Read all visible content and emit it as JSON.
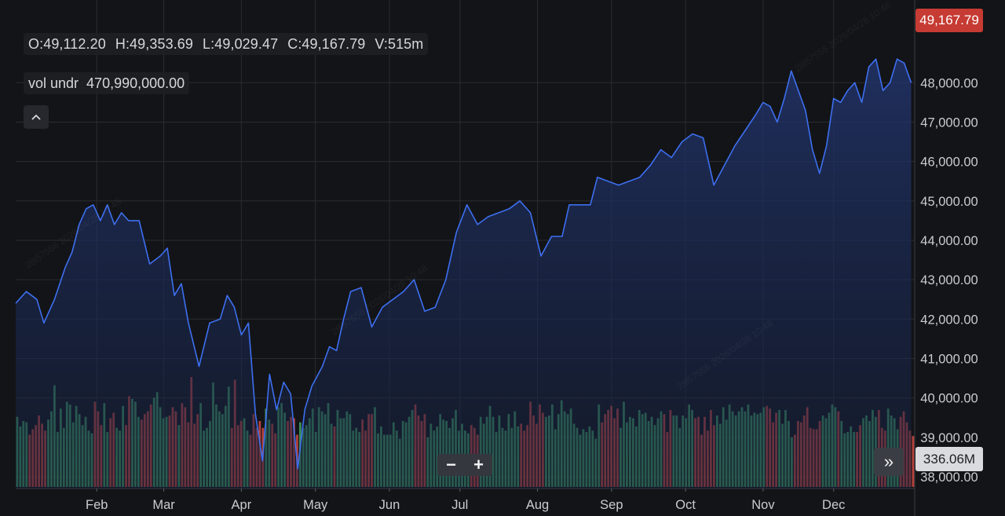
{
  "ohlc": {
    "open": "O:49,112.20",
    "high": "H:49,353.69",
    "low": "L:49,029.47",
    "close": "C:49,167.79",
    "volume": "V:515m"
  },
  "volume_indicator": {
    "label": "vol undr",
    "value": "470,990,000.00"
  },
  "collapse_icon": "chevron-up-icon",
  "badges": {
    "last_price": "49,167.79",
    "last_volume": "336.06M"
  },
  "controls": {
    "zoom_out": "−",
    "zoom_in": "+",
    "scroll_to_end": "»"
  },
  "colors": {
    "background": "#131417",
    "line": "#3d6ff0",
    "area_top": "#22356e",
    "up_volume": "#3f9a5f",
    "down_volume": "#c4463f",
    "price_badge": "#c63b33",
    "grid": "#2a2c31"
  },
  "chart_data": {
    "type": "area",
    "title": "",
    "xlabel": "",
    "ylabel": "",
    "y_axis_position": "right",
    "ylim": [
      37700,
      49900
    ],
    "y_ticks": [
      "38,000.00",
      "39,000.00",
      "40,000.00",
      "41,000.00",
      "42,000.00",
      "43,000.00",
      "44,000.00",
      "45,000.00",
      "46,000.00",
      "47,000.00",
      "48,000.00"
    ],
    "y_tick_values": [
      38000,
      39000,
      40000,
      41000,
      42000,
      43000,
      44000,
      45000,
      46000,
      47000,
      48000
    ],
    "x_tick_labels": [
      "Feb",
      "Mar",
      "Apr",
      "May",
      "Jun",
      "Jul",
      "Aug",
      "Sep",
      "Oct",
      "Nov",
      "Dec"
    ],
    "x_tick_positions": [
      23,
      42,
      64,
      85,
      106,
      126,
      148,
      169,
      190,
      212,
      232
    ],
    "x_range": [
      0,
      255
    ],
    "grid": true,
    "series": [
      {
        "type": "area",
        "points": [
          [
            0,
            42400
          ],
          [
            3,
            42700
          ],
          [
            6,
            42500
          ],
          [
            8,
            41900
          ],
          [
            11,
            42500
          ],
          [
            14,
            43300
          ],
          [
            16,
            43700
          ],
          [
            18,
            44400
          ],
          [
            20,
            44800
          ],
          [
            22,
            44900
          ],
          [
            24,
            44500
          ],
          [
            26,
            44900
          ],
          [
            28,
            44400
          ],
          [
            30,
            44700
          ],
          [
            32,
            44500
          ],
          [
            35,
            44500
          ],
          [
            38,
            43400
          ],
          [
            41,
            43600
          ],
          [
            43,
            43800
          ],
          [
            45,
            42600
          ],
          [
            47,
            42900
          ],
          [
            49,
            41900
          ],
          [
            52,
            40800
          ],
          [
            55,
            41900
          ],
          [
            58,
            42000
          ],
          [
            60,
            42600
          ],
          [
            62,
            42300
          ],
          [
            64,
            41600
          ],
          [
            66,
            41900
          ],
          [
            68,
            39600
          ],
          [
            70,
            38400
          ],
          [
            72,
            40600
          ],
          [
            74,
            39700
          ],
          [
            76,
            40400
          ],
          [
            78,
            40100
          ],
          [
            80,
            38200
          ],
          [
            82,
            39700
          ],
          [
            84,
            40300
          ],
          [
            87,
            40800
          ],
          [
            89,
            41300
          ],
          [
            91,
            41200
          ],
          [
            93,
            42000
          ],
          [
            95,
            42700
          ],
          [
            98,
            42800
          ],
          [
            101,
            41800
          ],
          [
            104,
            42300
          ],
          [
            107,
            42500
          ],
          [
            110,
            42700
          ],
          [
            113,
            43000
          ],
          [
            116,
            42200
          ],
          [
            119,
            42300
          ],
          [
            122,
            43000
          ],
          [
            125,
            44200
          ],
          [
            128,
            44900
          ],
          [
            131,
            44400
          ],
          [
            134,
            44600
          ],
          [
            137,
            44700
          ],
          [
            140,
            44800
          ],
          [
            143,
            45000
          ],
          [
            146,
            44700
          ],
          [
            149,
            43600
          ],
          [
            152,
            44100
          ],
          [
            155,
            44100
          ],
          [
            157,
            44900
          ],
          [
            160,
            44900
          ],
          [
            163,
            44900
          ],
          [
            165,
            45600
          ],
          [
            168,
            45500
          ],
          [
            171,
            45400
          ],
          [
            174,
            45500
          ],
          [
            177,
            45600
          ],
          [
            180,
            45900
          ],
          [
            183,
            46300
          ],
          [
            186,
            46100
          ],
          [
            189,
            46500
          ],
          [
            192,
            46700
          ],
          [
            195,
            46600
          ],
          [
            198,
            45400
          ],
          [
            201,
            45900
          ],
          [
            204,
            46400
          ],
          [
            207,
            46800
          ],
          [
            210,
            47200
          ],
          [
            212,
            47500
          ],
          [
            214,
            47400
          ],
          [
            216,
            47000
          ],
          [
            218,
            47600
          ],
          [
            220,
            48300
          ],
          [
            222,
            47800
          ],
          [
            224,
            47300
          ],
          [
            226,
            46300
          ],
          [
            228,
            45700
          ],
          [
            230,
            46400
          ],
          [
            232,
            47600
          ],
          [
            234,
            47500
          ],
          [
            236,
            47800
          ],
          [
            238,
            48000
          ],
          [
            240,
            47500
          ],
          [
            242,
            48400
          ],
          [
            244,
            48600
          ],
          [
            246,
            47800
          ],
          [
            248,
            48000
          ],
          [
            250,
            48600
          ],
          [
            252,
            48500
          ],
          [
            254,
            48000
          ]
        ]
      },
      {
        "type": "volume",
        "values": [
          51,
          44,
          48,
          47,
          38,
          42,
          45,
          52,
          46,
          41,
          49,
          55,
          74,
          40,
          57,
          43,
          62,
          60,
          47,
          59,
          53,
          45,
          51,
          41,
          39,
          62,
          55,
          45,
          61,
          40,
          50,
          54,
          43,
          41,
          59,
          45,
          66,
          64,
          62,
          51,
          49,
          53,
          55,
          60,
          65,
          69,
          58,
          50,
          51,
          52,
          58,
          55,
          45,
          61,
          58,
          47,
          80,
          46,
          53,
          61,
          41,
          43,
          48,
          76,
          60,
          55,
          53,
          59,
          73,
          43,
          78,
          45,
          48,
          50,
          41,
          38,
          53,
          43,
          48,
          43,
          57,
          49,
          46,
          39,
          58,
          61,
          54,
          48,
          51,
          50,
          38,
          47,
          43,
          45,
          50,
          57,
          40,
          58,
          55,
          53,
          61,
          46,
          44,
          56,
          50,
          50,
          55,
          53,
          41,
          43,
          40,
          49,
          41,
          53,
          53,
          58,
          39,
          44,
          38,
          38,
          38,
          47,
          41,
          35,
          48,
          47,
          51,
          56,
          60,
          52,
          48,
          53,
          36,
          46,
          41,
          44,
          53,
          49,
          48,
          43,
          50,
          56,
          41,
          46,
          41,
          39,
          45,
          43,
          38,
          51,
          46,
          51,
          59,
          51,
          40,
          52,
          43,
          41,
          53,
          43,
          55,
          44,
          46,
          41,
          45,
          62,
          52,
          46,
          60,
          54,
          51,
          52,
          60,
          42,
          53,
          63,
          55,
          53,
          57,
          46,
          43,
          38,
          42,
          40,
          44,
          41,
          35,
          60,
          47,
          53,
          56,
          59,
          50,
          57,
          43,
          62,
          47,
          51,
          50,
          44,
          56,
          53,
          54,
          48,
          51,
          45,
          50,
          55,
          53,
          40,
          56,
          52,
          52,
          43,
          52,
          50,
          60,
          56,
          50,
          51,
          38,
          51,
          41,
          56,
          45,
          52,
          46,
          58,
          49,
          60,
          55,
          52,
          55,
          58,
          55,
          60,
          52,
          54,
          53,
          54,
          58,
          59,
          57,
          47,
          54,
          56,
          46,
          56,
          48,
          36,
          38,
          48,
          47,
          52,
          58,
          43,
          42,
          42,
          48,
          52,
          50,
          54,
          60,
          58,
          55,
          48,
          39,
          40,
          44,
          40,
          40,
          45,
          50,
          52,
          48,
          56,
          51,
          56,
          43,
          41,
          57,
          52,
          50,
          42,
          51,
          55,
          47,
          41,
          37
        ]
      }
    ]
  }
}
